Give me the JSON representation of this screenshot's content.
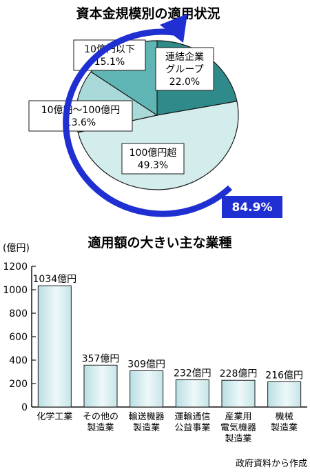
{
  "chart_data": [
    {
      "type": "pie",
      "title": "資本金規模別の適用状況",
      "slices": [
        {
          "label_lines": [
            "連結企業",
            "グループ"
          ],
          "value": 22.0,
          "value_text": "22.0%",
          "color": "#2f8a8a"
        },
        {
          "label_lines": [
            "100億円超"
          ],
          "value": 49.3,
          "value_text": "49.3%",
          "color": "#d3ecec"
        },
        {
          "label_lines": [
            "10億円～100億円"
          ],
          "value": 13.6,
          "value_text": "13.6%",
          "color": "#a9d9d9"
        },
        {
          "label_lines": [
            "10億円以下"
          ],
          "value": 15.1,
          "value_text": "15.1%",
          "color": "#5fb5b3"
        }
      ],
      "annotation": {
        "text": "84.9%",
        "color": "#1f2fd1"
      }
    },
    {
      "type": "bar",
      "title": "適用額の大きい主な業種",
      "ylabel": "(億円)",
      "ylim": [
        0,
        1200
      ],
      "yticks": [
        0,
        200,
        400,
        600,
        800,
        1000,
        1200
      ],
      "categories": [
        [
          "化学工業"
        ],
        [
          "その他の",
          "製造業"
        ],
        [
          "輸送機器",
          "製造業"
        ],
        [
          "運輸通信",
          "公益事業"
        ],
        [
          "産業用",
          "電気機器",
          "製造業"
        ],
        [
          "機械",
          "製造業"
        ]
      ],
      "values": [
        1034,
        357,
        309,
        232,
        228,
        216
      ],
      "value_labels": [
        "1034億円",
        "357億円",
        "309億円",
        "232億円",
        "228億円",
        "216億円"
      ]
    }
  ],
  "source": "政府資料から作成"
}
